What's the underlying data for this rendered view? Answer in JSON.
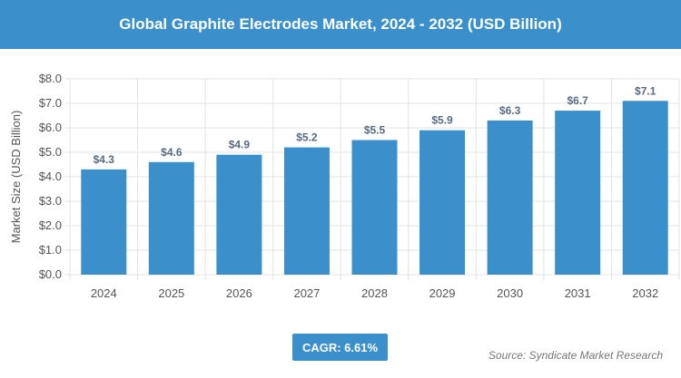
{
  "header": {
    "title": "Global Graphite Electrodes Market, 2024 - 2032 (USD Billion)"
  },
  "chart_data": {
    "type": "bar",
    "title": "Global Graphite Electrodes Market, 2024 - 2032 (USD Billion)",
    "xlabel": "",
    "ylabel": "Market Size (USD Billion)",
    "categories": [
      "2024",
      "2025",
      "2026",
      "2027",
      "2028",
      "2029",
      "2030",
      "2031",
      "2032"
    ],
    "values": [
      4.3,
      4.6,
      4.9,
      5.2,
      5.5,
      5.9,
      6.3,
      6.7,
      7.1
    ],
    "data_labels": [
      "$4.3",
      "$4.6",
      "$4.9",
      "$5.2",
      "$5.5",
      "$5.9",
      "$6.3",
      "$6.7",
      "$7.1"
    ],
    "ylim": [
      0,
      8
    ],
    "yticks": [
      "$0.0",
      "$1.0",
      "$2.0",
      "$3.0",
      "$4.0",
      "$5.0",
      "$6.0",
      "$7.0",
      "$8.0"
    ],
    "grid": true,
    "bar_color": "#3b8fcb"
  },
  "footer": {
    "cagr": "CAGR: 6.61%",
    "source": "Source: Syndicate Market Research"
  }
}
